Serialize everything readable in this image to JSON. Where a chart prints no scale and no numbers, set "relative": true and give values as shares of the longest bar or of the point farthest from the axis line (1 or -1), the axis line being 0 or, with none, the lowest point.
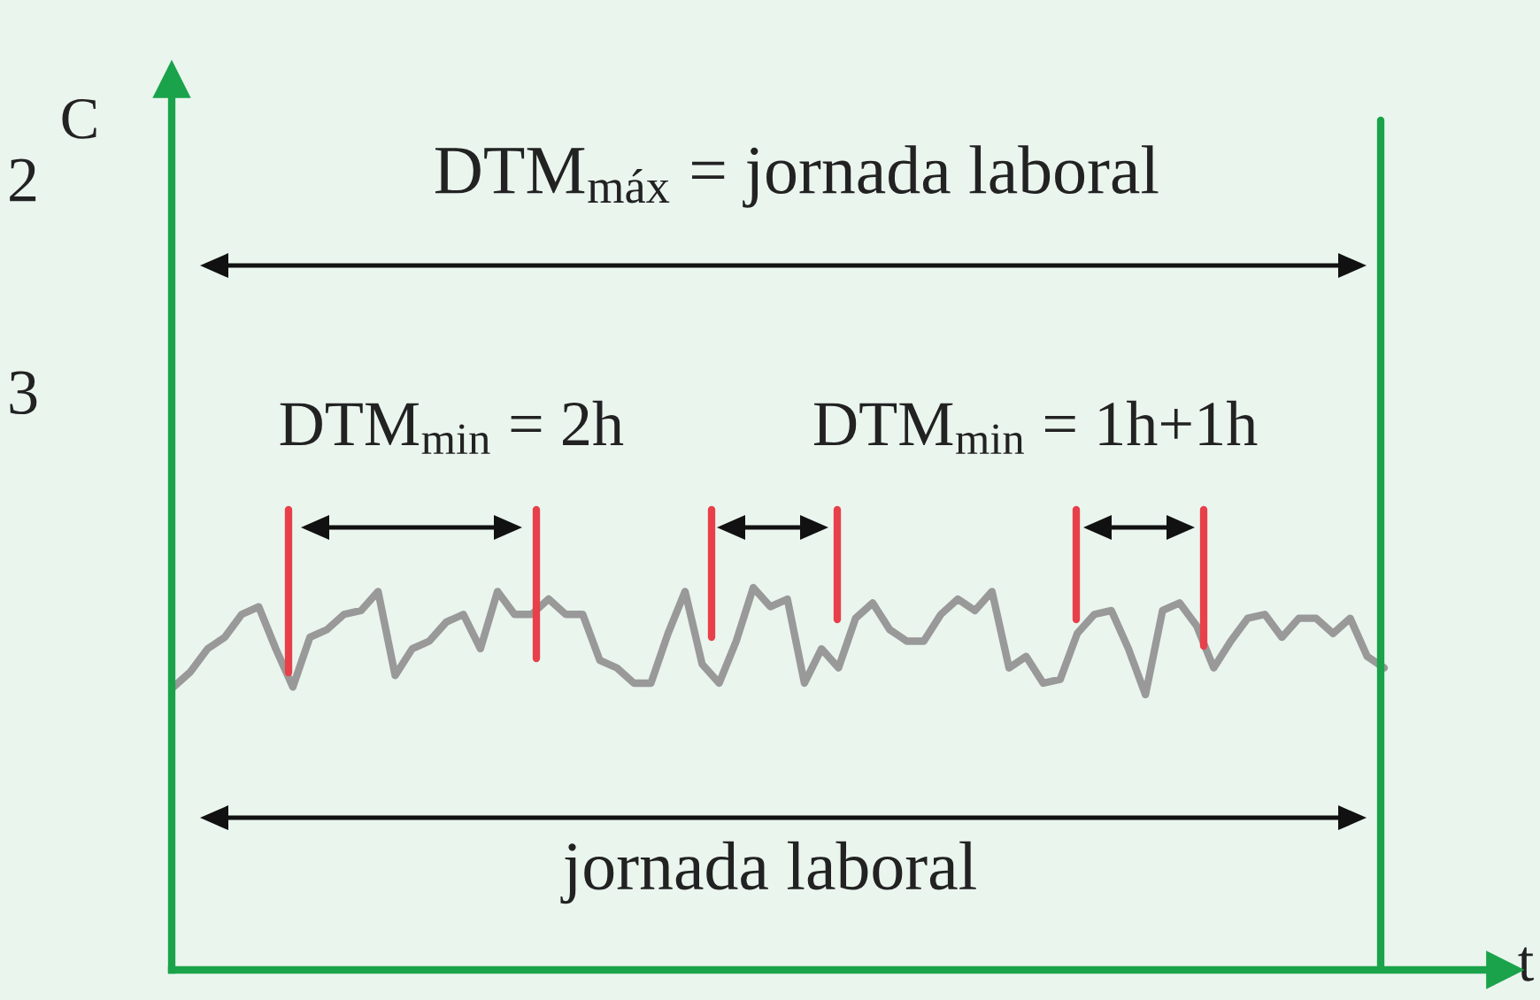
{
  "chart_data": {
    "type": "line",
    "relative": true,
    "xlabel": "t",
    "categories": [
      null,
      null,
      null,
      null,
      null,
      null,
      null,
      null,
      null,
      null,
      null,
      null,
      null,
      null,
      null,
      null,
      null,
      null,
      null,
      null,
      null,
      null,
      null,
      null,
      null,
      null,
      null,
      null,
      null,
      null,
      null,
      null,
      null,
      null,
      null,
      null,
      null,
      null,
      null,
      null,
      null,
      null,
      null,
      null,
      null,
      null,
      null,
      null,
      null,
      null,
      null,
      null,
      null,
      null,
      null,
      null,
      null,
      null,
      null,
      null,
      null,
      null,
      null,
      null,
      null,
      null,
      null,
      null,
      null,
      null,
      null,
      null
    ],
    "series": [
      {
        "color": "#999999",
        "values": [
          0.74,
          0.78,
          0.84,
          0.87,
          0.93,
          0.95,
          0.84,
          0.74,
          0.87,
          0.89,
          0.93,
          0.94,
          0.99,
          0.77,
          0.84,
          0.86,
          0.91,
          0.93,
          0.84,
          0.99,
          0.93,
          0.93,
          0.97,
          0.93,
          0.93,
          0.81,
          0.79,
          0.75,
          0.75,
          0.88,
          0.99,
          0.8,
          0.75,
          0.86,
          1,
          0.95,
          0.97,
          0.75,
          0.84,
          0.79,
          0.92,
          0.96,
          0.89,
          0.86,
          0.86,
          0.93,
          0.97,
          0.94,
          0.99,
          0.79,
          0.82,
          0.75,
          0.76,
          0.88,
          0.93,
          0.94,
          0.84,
          0.72,
          0.94,
          0.96,
          0.9,
          0.79,
          0.86,
          0.92,
          0.93,
          0.87,
          0.92,
          0.92,
          0.88,
          0.92,
          0.82,
          0.79
        ]
      }
    ],
    "annotations": [
      "DTM$_{máx}$ = jornada laboral",
      "DTM$_{min}$ = 2h",
      "DTM$_{min}$ = 1h+1h",
      "jornada laboral",
      "2",
      "3",
      "C"
    ],
    "line_style": "solid"
  }
}
